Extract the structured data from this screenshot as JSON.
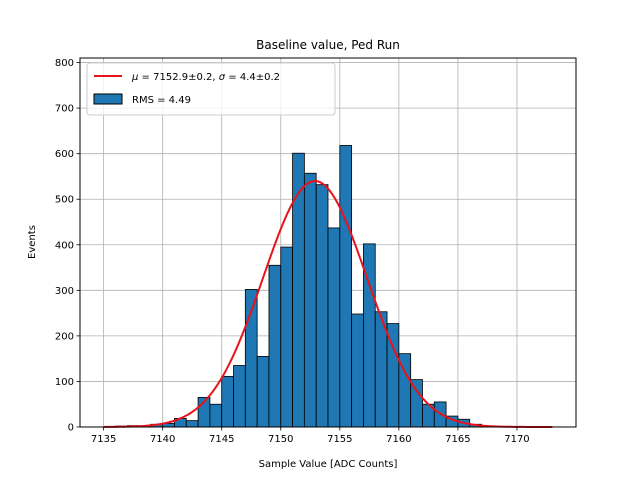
{
  "chart_data": {
    "type": "bar",
    "title": "Baseline value, Ped Run",
    "xlabel": "Sample Value [ADC Counts]",
    "ylabel": "Events",
    "xlim": [
      7133,
      7175
    ],
    "ylim": [
      0,
      810
    ],
    "xticks": [
      7135,
      7140,
      7145,
      7150,
      7155,
      7160,
      7165,
      7170
    ],
    "yticks": [
      0,
      100,
      200,
      300,
      400,
      500,
      600,
      700,
      800
    ],
    "grid": true,
    "legend_position": "top-left",
    "bar_color": "#1f77b4",
    "fit_color": "#e8131b",
    "histogram": {
      "name": "RMS = 4.49",
      "bin_width": 1,
      "bin_edges_start": [
        7136,
        7137,
        7138,
        7139,
        7140,
        7141,
        7142,
        7143,
        7144,
        7145,
        7146,
        7147,
        7148,
        7149,
        7150,
        7151,
        7152,
        7153,
        7154,
        7155,
        7156,
        7157,
        7158,
        7159,
        7160,
        7161,
        7162,
        7163,
        7164,
        7165,
        7166,
        7167,
        7168
      ],
      "counts": [
        2,
        3,
        2,
        6,
        8,
        19,
        14,
        65,
        50,
        111,
        135,
        302,
        155,
        355,
        395,
        601,
        557,
        532,
        437,
        618,
        248,
        402,
        253,
        227,
        161,
        104,
        50,
        55,
        24,
        17,
        6,
        2,
        1
      ]
    },
    "fit": {
      "name": "$\\mu = 7152.9{\\pm}0.2$, $\\sigma = 4.4{\\pm}0.2$",
      "type": "gaussian",
      "mu": 7152.9,
      "sigma": 4.4,
      "amplitude": 540,
      "x_range": [
        7135,
        7173
      ]
    },
    "legend": {
      "fit_mu_symbol": "μ",
      "fit_mu_text": " = 7152.9±0.2, ",
      "fit_sigma_symbol": "σ",
      "fit_sigma_text": " = 4.4±0.2",
      "histogram_label": "RMS = 4.49"
    }
  }
}
